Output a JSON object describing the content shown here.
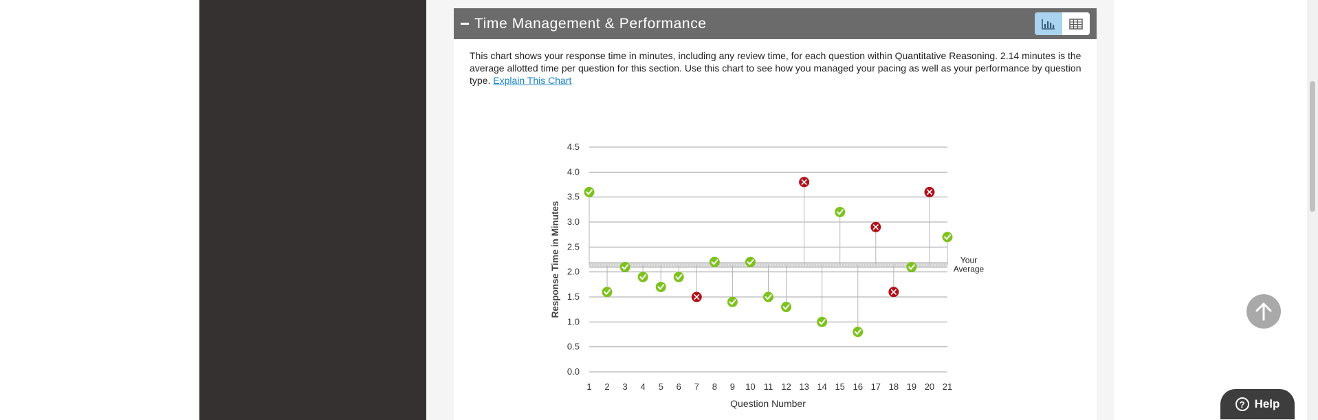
{
  "section": {
    "title": "Time Management & Performance",
    "description": "This chart shows your response time in minutes, including any review time, for each question within Quantitative Reasoning. 2.14 minutes is the average allotted time per question for this section. Use this chart to see how you managed your pacing as well as your performance by question type.",
    "link": "Explain This Chart"
  },
  "icons": {
    "collapse": "minus-icon",
    "chart_view": "bar-chart-icon",
    "table_view": "table-icon",
    "back_to_top": "arrow-up-icon",
    "help": "question-icon"
  },
  "help_label": "Help",
  "help_glyph": "?",
  "colors": {
    "header": "#6b6b6b",
    "dark_panel": "#343130",
    "correct": "#7dc21e",
    "incorrect": "#b0121b",
    "link": "#1a84c7",
    "active_toggle": "#a9d3ee"
  },
  "chart_data": {
    "type": "scatter",
    "xlabel": "Question Number",
    "ylabel": "Response Time in Minutes",
    "categories": [
      "1",
      "2",
      "3",
      "4",
      "5",
      "6",
      "7",
      "8",
      "9",
      "10",
      "11",
      "12",
      "13",
      "14",
      "15",
      "16",
      "17",
      "18",
      "19",
      "20",
      "21"
    ],
    "values": [
      3.6,
      1.6,
      2.1,
      1.9,
      1.7,
      1.9,
      1.5,
      2.2,
      1.4,
      2.2,
      1.5,
      1.3,
      3.8,
      1.0,
      3.2,
      0.8,
      2.9,
      1.6,
      2.1,
      3.6,
      2.7
    ],
    "status": [
      "correct",
      "correct",
      "correct",
      "correct",
      "correct",
      "correct",
      "incorrect",
      "correct",
      "correct",
      "correct",
      "correct",
      "correct",
      "incorrect",
      "correct",
      "correct",
      "correct",
      "incorrect",
      "incorrect",
      "correct",
      "incorrect",
      "correct"
    ],
    "average": 2.14,
    "average_label": [
      "Your",
      "Average"
    ],
    "ylim": [
      0,
      4.5
    ],
    "yticks": [
      "0.0",
      "0.5",
      "1.0",
      "1.5",
      "2.0",
      "2.5",
      "3.0",
      "3.5",
      "4.0",
      "4.5"
    ],
    "grid": true
  }
}
